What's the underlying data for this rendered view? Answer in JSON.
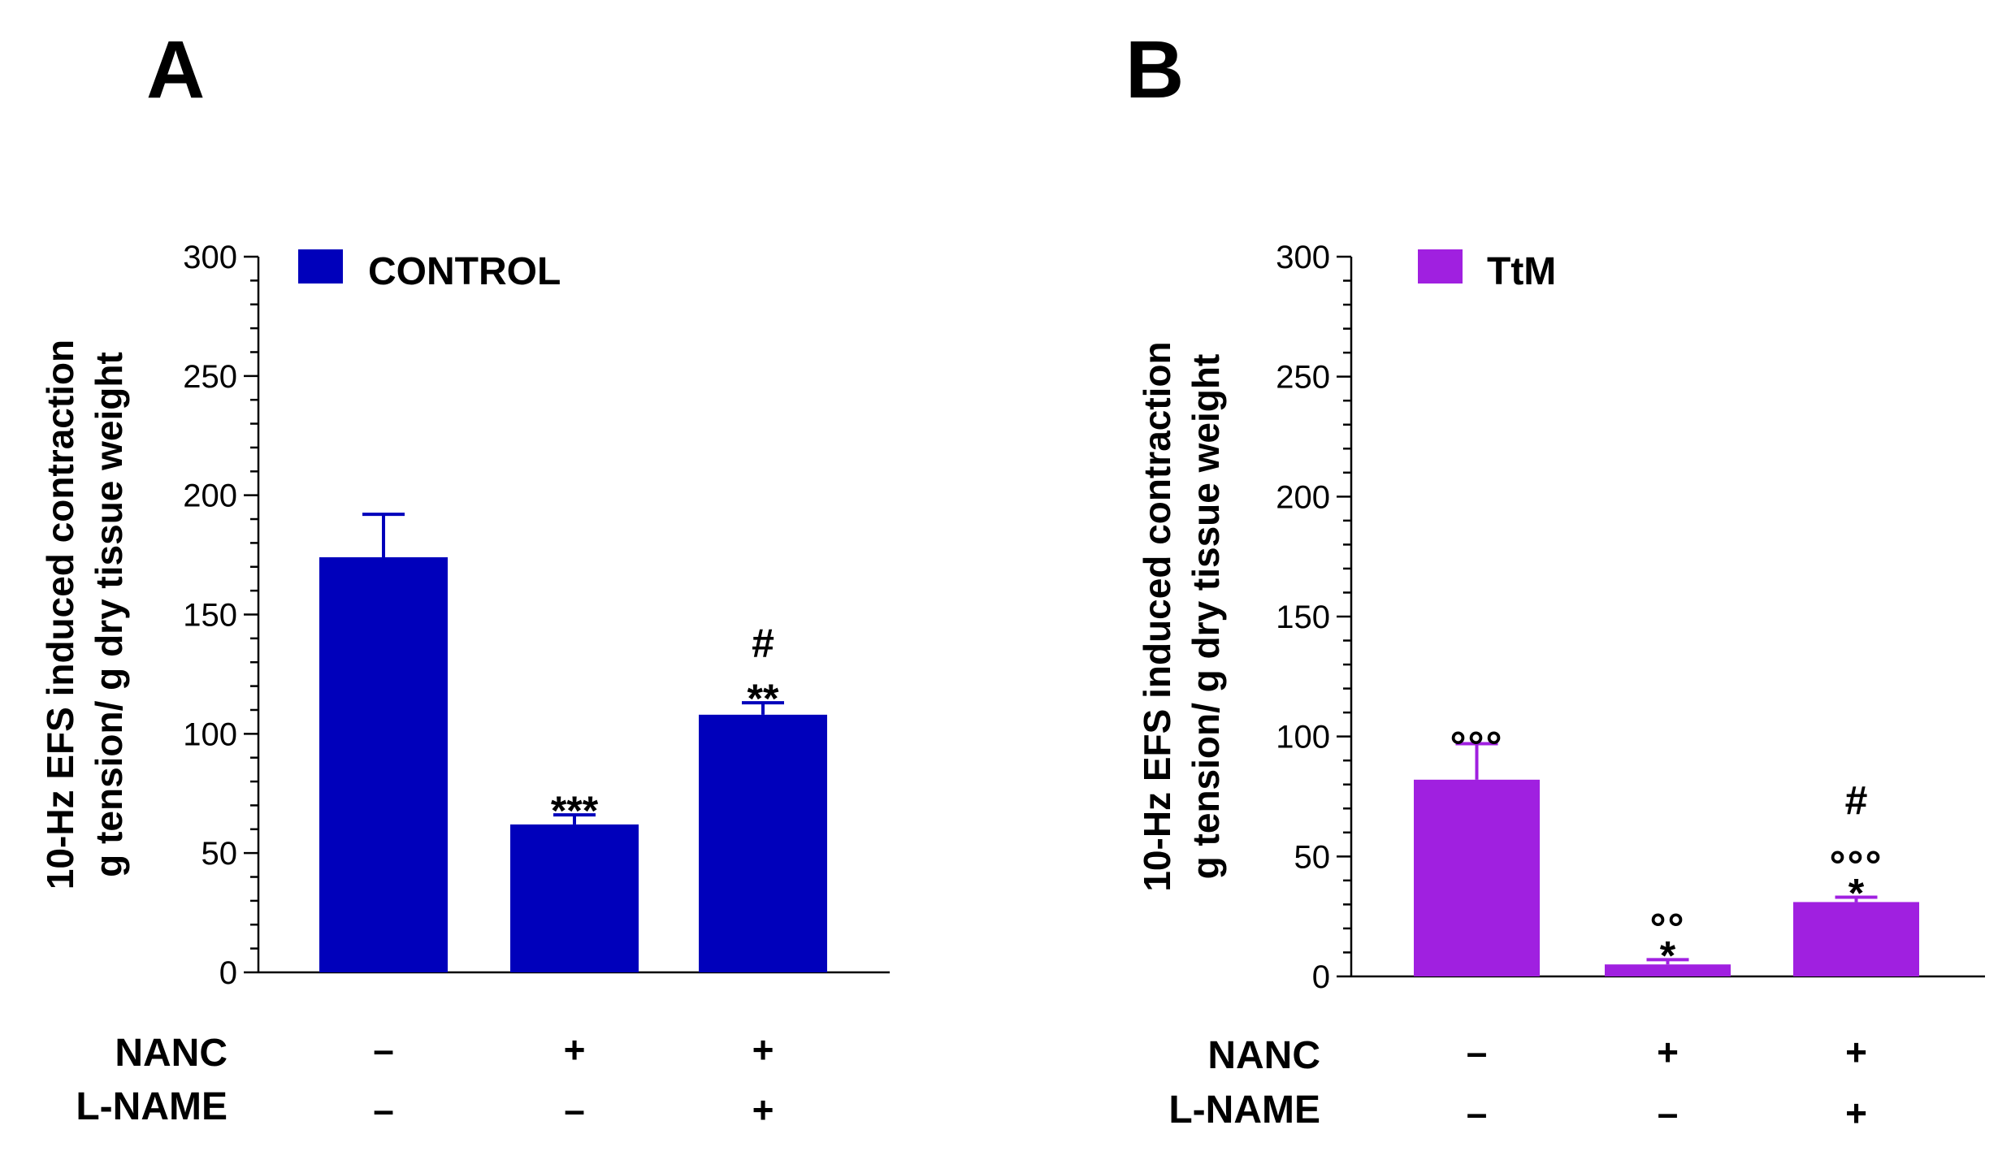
{
  "chart_data": [
    {
      "panel": "A",
      "type": "bar",
      "legend_label": "CONTROL",
      "legend_position": "top-left",
      "color": "#0000BB",
      "ylabel_lines": [
        "10-Hz EFS induced contraction",
        "g tension/ g dry tissue weight"
      ],
      "ylim": [
        0,
        300
      ],
      "yticks": [
        0,
        50,
        100,
        150,
        200,
        250,
        300
      ],
      "yticks_labels": [
        "0",
        "50",
        "100",
        "150",
        "200",
        "250",
        "300"
      ],
      "row_labels": [
        "NANC",
        "L-NAME"
      ],
      "bars": [
        {
          "value": 174,
          "error": 18,
          "nanc": "–",
          "lname": "–",
          "annotations": []
        },
        {
          "value": 62,
          "error": 4,
          "nanc": "+",
          "lname": "–",
          "annotations": [
            "***"
          ]
        },
        {
          "value": 108,
          "error": 5,
          "nanc": "+",
          "lname": "+",
          "annotations": [
            "**",
            "#"
          ]
        }
      ]
    },
    {
      "panel": "B",
      "type": "bar",
      "legend_label": "TtM",
      "legend_position": "top-left",
      "color": "#A020E0",
      "ylabel_lines": [
        "10-Hz EFS induced contraction",
        "g tension/ g dry tissue weight"
      ],
      "ylim": [
        0,
        300
      ],
      "yticks": [
        0,
        50,
        100,
        150,
        200,
        250,
        300
      ],
      "yticks_labels": [
        "0",
        "50",
        "100",
        "150",
        "200",
        "250",
        "300"
      ],
      "row_labels": [
        "NANC",
        "L-NAME"
      ],
      "bars": [
        {
          "value": 82,
          "error": 15,
          "nanc": "–",
          "lname": "–",
          "annotations": [
            "°°°"
          ]
        },
        {
          "value": 5,
          "error": 2,
          "nanc": "+",
          "lname": "–",
          "annotations": [
            "*",
            "°°"
          ]
        },
        {
          "value": 31,
          "error": 2,
          "nanc": "+",
          "lname": "+",
          "annotations": [
            "*",
            "°°°",
            "#"
          ]
        }
      ]
    }
  ]
}
